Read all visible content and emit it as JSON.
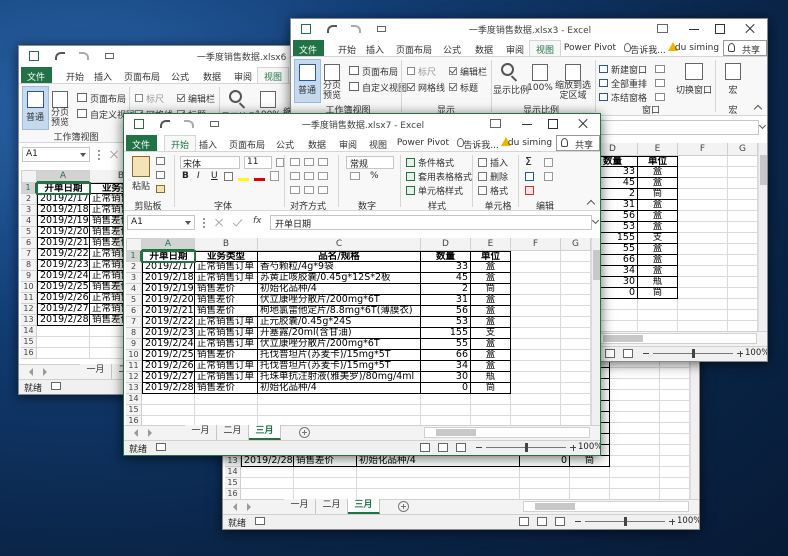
{
  "windows": [
    {
      "title": "一季度销售数据.xlsx6 - Excel"
    },
    {
      "title": "一季度销售数据.xlsx3 - Excel"
    },
    {
      "title": "一季度销售数据.xlsx7 - Excel"
    }
  ],
  "app": {
    "tabs": [
      "文件",
      "开始",
      "插入",
      "页面布局",
      "公式",
      "数据",
      "审阅",
      "视图",
      "Power Pivot",
      "告诉我...",
      "du siming",
      "共享"
    ],
    "view_ribbon": {
      "normal": "普通",
      "page_break": "分页预览",
      "page_layout": "页面布局",
      "custom_views": "自定义视图",
      "group_views": "工作簿视图",
      "ruler": "标尺",
      "formula_bar": "编辑栏",
      "gridlines": "网格线",
      "headings": "标题",
      "group_show": "显示",
      "zoom": "显示比例",
      "zoom100": "100%",
      "zoom_selection": "缩放到选定区域",
      "group_zoom": "显示比例",
      "new_window": "新建窗口",
      "arrange_all": "全部重排",
      "freeze": "冻结窗格",
      "switch": "切换窗口",
      "group_window": "窗口",
      "macros": "宏",
      "group_macros": "宏"
    },
    "home_ribbon": {
      "paste": "粘贴",
      "group_clipboard": "剪贴板",
      "font": "宋体",
      "size": "11",
      "bold": "B",
      "italic": "I",
      "underline": "U",
      "group_font": "字体",
      "group_align": "对齐方式",
      "number_format": "常规",
      "percent": "%",
      "group_number": "数字",
      "cond_format": "条件格式",
      "table_format": "套用表格格式",
      "cell_styles": "单元格样式",
      "group_styles": "样式",
      "insert": "插入",
      "delete": "删除",
      "format": "格式",
      "group_cells": "单元格",
      "sum": "Σ",
      "group_edit": "编辑"
    },
    "formula_bar": {
      "name_box": "A1",
      "fx": "fx",
      "content": "开单日期"
    },
    "sheet_tabs": [
      "一月",
      "二月",
      "三月"
    ],
    "status": "就绪",
    "zoom": "100%"
  },
  "sheet": {
    "columns": [
      "A",
      "B",
      "C",
      "D",
      "E",
      "F",
      "G"
    ],
    "row_numbers": [
      1,
      2,
      3,
      4,
      5,
      6,
      7,
      8,
      9,
      10,
      11,
      12,
      13,
      14,
      15,
      16
    ],
    "header": [
      "开单日期",
      "业务类型",
      "品名/规格",
      "数量",
      "单位"
    ],
    "rows": [
      [
        "2019/2/17",
        "正常销售订单",
        "香芍颗粒/4g*9袋",
        33,
        "盒"
      ],
      [
        "2019/2/18",
        "正常销售订单",
        "苏黄止咳胶囊/0.45g*12S*2板",
        45,
        "盒"
      ],
      [
        "2019/2/19",
        "销售差价",
        "初始化品种/4",
        2,
        "筒"
      ],
      [
        "2019/2/20",
        "销售差价",
        "伏立康唑分散片/200mg*6T",
        31,
        "盒"
      ],
      [
        "2019/2/21",
        "销售差价",
        "枸地氯雷他定片/8.8mg*6T(薄膜衣)",
        56,
        "盒"
      ],
      [
        "2019/2/22",
        "正常销售订单",
        "正元胶囊/0.45g*24S",
        53,
        "盒"
      ],
      [
        "2019/2/23",
        "正常销售订单",
        "开塞露/20ml(含甘油)",
        155,
        "支"
      ],
      [
        "2019/2/24",
        "正常销售订单",
        "伏立康唑分散片/200mg*6T",
        55,
        "盒"
      ],
      [
        "2019/2/25",
        "销售差价",
        "托伐普坦片(苏麦卡)/15mg*5T",
        66,
        "盒"
      ],
      [
        "2019/2/26",
        "正常销售订单",
        "托伐普坦片(苏麦卡)/15mg*5T",
        34,
        "盒"
      ],
      [
        "2019/2/27",
        "正常销售订单",
        "托珠单抗注射液(雅美罗)/80mg/4ml",
        30,
        "瓶"
      ],
      [
        "2019/2/28",
        "销售差价",
        "初始化品种/4",
        0,
        "筒"
      ]
    ]
  }
}
